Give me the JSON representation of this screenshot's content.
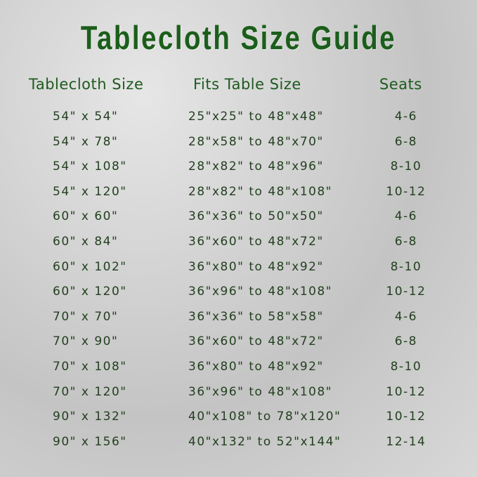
{
  "title": "Tablecloth Size Guide",
  "headers": [
    "Tablecloth Size",
    "Fits Table Size",
    "Seats"
  ],
  "rows": [
    {
      "size": "54\" x 54\"",
      "fits": "25\"x25\" to 48\"x48\"",
      "seats": "4-6"
    },
    {
      "size": "54\" x 78\"",
      "fits": "28\"x58\" to 48\"x70\"",
      "seats": "6-8"
    },
    {
      "size": "54\" x 108\"",
      "fits": "28\"x82\" to 48\"x96\"",
      "seats": "8-10"
    },
    {
      "size": "54\" x 120\"",
      "fits": "28\"x82\" to 48\"x108\"",
      "seats": "10-12"
    },
    {
      "size": "60\" x 60\"",
      "fits": "36\"x36\" to 50\"x50\"",
      "seats": "4-6"
    },
    {
      "size": "60\" x 84\"",
      "fits": "36\"x60\" to 48\"x72\"",
      "seats": "6-8"
    },
    {
      "size": "60\" x 102\"",
      "fits": "36\"x80\" to 48\"x92\"",
      "seats": "8-10"
    },
    {
      "size": "60\" x 120\"",
      "fits": "36\"x96\" to 48\"x108\"",
      "seats": "10-12"
    },
    {
      "size": "70\" x 70\"",
      "fits": "36\"x36\" to 58\"x58\"",
      "seats": "4-6"
    },
    {
      "size": "70\" x 90\"",
      "fits": "36\"x60\" to 48\"x72\"",
      "seats": "6-8"
    },
    {
      "size": "70\" x 108\"",
      "fits": "36\"x80\" to 48\"x92\"",
      "seats": "8-10"
    },
    {
      "size": "70\" x 120\"",
      "fits": "36\"x96\" to 48\"x108\"",
      "seats": "10-12"
    },
    {
      "size": "90\" x 132\"",
      "fits": "40\"x108\" to 78\"x120\"",
      "seats": "10-12"
    },
    {
      "size": "90\" x 156\"",
      "fits": "40\"x132\" to 52\"x144\"",
      "seats": "12-14"
    }
  ]
}
